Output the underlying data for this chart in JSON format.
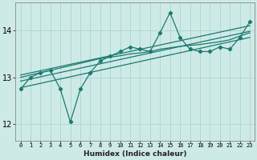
{
  "title": "",
  "xlabel": "Humidex (Indice chaleur)",
  "ylabel": "",
  "bg_color": "#ceeae7",
  "grid_color": "#b0d8d4",
  "line_color": "#1a7a6e",
  "xlim": [
    -0.5,
    23.5
  ],
  "ylim": [
    11.65,
    14.6
  ],
  "yticks": [
    12,
    13,
    14
  ],
  "xticks": [
    0,
    1,
    2,
    3,
    4,
    5,
    6,
    7,
    8,
    9,
    10,
    11,
    12,
    13,
    14,
    15,
    16,
    17,
    18,
    19,
    20,
    21,
    22,
    23
  ],
  "data_x": [
    0,
    1,
    2,
    3,
    4,
    5,
    6,
    7,
    8,
    9,
    10,
    11,
    12,
    13,
    14,
    15,
    16,
    17,
    18,
    19,
    20,
    21,
    22,
    23
  ],
  "data_y_jagged": [
    12.75,
    13.0,
    13.1,
    13.15,
    12.75,
    12.05,
    12.75,
    13.1,
    13.35,
    13.45,
    13.55,
    13.65,
    13.6,
    13.55,
    13.95,
    14.38,
    13.85,
    13.6,
    13.55,
    13.55,
    13.65,
    13.6,
    13.85,
    14.18
  ],
  "line1_y": [
    12.78,
    13.85
  ],
  "line2_y": [
    12.92,
    13.98
  ],
  "line3_y": [
    13.05,
    14.1
  ],
  "smooth_y": [
    13.0,
    13.05,
    13.1,
    13.15,
    13.2,
    13.25,
    13.3,
    13.35,
    13.4,
    13.43,
    13.46,
    13.5,
    13.52,
    13.55,
    13.6,
    13.63,
    13.66,
    13.68,
    13.7,
    13.73,
    13.76,
    13.8,
    13.88,
    13.95
  ]
}
